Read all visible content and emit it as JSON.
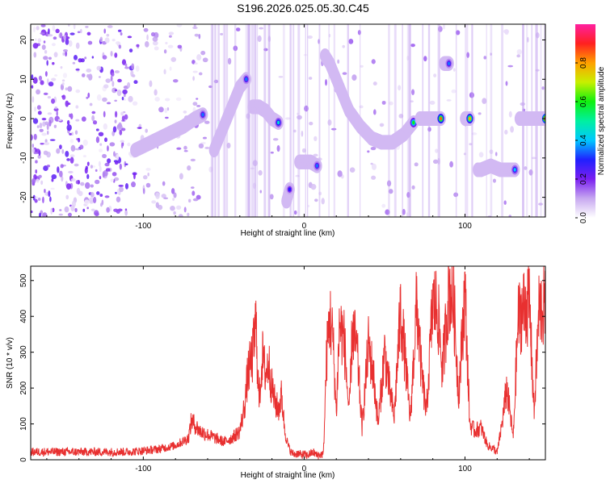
{
  "title": "S196.2026.025.05.30.C45",
  "chart_data": [
    {
      "type": "heatmap",
      "name": "spectrogram",
      "xlabel": "Height of straight line (km)",
      "ylabel": "Frequency (Hz)",
      "xlim": [
        -170,
        150
      ],
      "ylim": [
        -25,
        24
      ],
      "xticks": [
        -100,
        0,
        100
      ],
      "yticks": [
        -20,
        -10,
        0,
        10,
        20
      ],
      "colorbar": {
        "label": "Normalized spectral amplitude",
        "range": [
          0,
          1
        ],
        "ticks": [
          "0.0",
          "0.2",
          "0.4",
          "0.6",
          "0.8"
        ],
        "colors": [
          "#ffffff",
          "#c7a8f0",
          "#7a1ff0",
          "#2020ff",
          "#00c8ff",
          "#00f0a0",
          "#10f010",
          "#c8f000",
          "#ffa000",
          "#ff2020",
          "#ff20a0"
        ]
      },
      "ridge_segments": [
        {
          "x": [
            -105,
            -95,
            -85,
            -75,
            -68,
            -63
          ],
          "y": [
            -8,
            -6,
            -4,
            -2,
            0,
            1
          ],
          "amp": 0.35
        },
        {
          "x": [
            -56,
            -52,
            -48,
            -44,
            -40,
            -36
          ],
          "y": [
            -8,
            -4,
            0,
            4,
            8,
            10
          ],
          "amp": 0.35
        },
        {
          "x": [
            -32,
            -28,
            -24,
            -20,
            -16
          ],
          "y": [
            3,
            3,
            2,
            0,
            -1
          ],
          "amp": 0.45
        },
        {
          "x": [
            -11,
            -9
          ],
          "y": [
            -21,
            -18
          ],
          "amp": 0.3
        },
        {
          "x": [
            -3,
            0,
            4,
            8
          ],
          "y": [
            -11,
            -11,
            -11,
            -12
          ],
          "amp": 0.35
        },
        {
          "x": [
            13,
            16,
            22,
            28,
            35,
            42,
            48,
            55,
            62,
            68
          ],
          "y": [
            16,
            14,
            8,
            2,
            -2,
            -5,
            -6,
            -6,
            -4,
            -1
          ],
          "amp": 0.6
        },
        {
          "x": [
            72,
            75,
            80,
            85
          ],
          "y": [
            0,
            0,
            0,
            0
          ],
          "amp": 0.85
        },
        {
          "x": [
            87,
            90
          ],
          "y": [
            14,
            14
          ],
          "amp": 0.35
        },
        {
          "x": [
            100,
            103
          ],
          "y": [
            0,
            0
          ],
          "amp": 0.8
        },
        {
          "x": [
            108,
            110,
            116,
            122,
            128,
            131
          ],
          "y": [
            -13,
            -13,
            -12,
            -13,
            -13,
            -13
          ],
          "amp": 0.4
        },
        {
          "x": [
            134,
            140,
            146,
            150
          ],
          "y": [
            0,
            0,
            0,
            0
          ],
          "amp": 0.95
        }
      ]
    },
    {
      "type": "line",
      "name": "snr",
      "xlabel": "Height of straight line (km)",
      "ylabel": "SNR (10 * v/v)",
      "xlim": [
        -170,
        150
      ],
      "ylim": [
        0,
        540
      ],
      "xticks": [
        -100,
        0,
        100
      ],
      "yticks": [
        0,
        100,
        200,
        300,
        400,
        500
      ],
      "color": "#e83030",
      "series": [
        {
          "name": "SNR",
          "x": [
            -170,
            -150,
            -130,
            -110,
            -100,
            -90,
            -80,
            -72,
            -70,
            -65,
            -60,
            -55,
            -50,
            -45,
            -40,
            -37,
            -35,
            -32,
            -30,
            -28,
            -26,
            -24,
            -22,
            -20,
            -18,
            -16,
            -14,
            -12,
            -10,
            -8,
            -6,
            -4,
            -2,
            0,
            2,
            4,
            6,
            8,
            10,
            12,
            14,
            16,
            18,
            20,
            22,
            25,
            28,
            30,
            33,
            36,
            40,
            43,
            46,
            50,
            53,
            56,
            60,
            63,
            66,
            70,
            73,
            76,
            80,
            83,
            86,
            90,
            93,
            96,
            100,
            103,
            106,
            110,
            114,
            118,
            120,
            123,
            126,
            130,
            133,
            136,
            140,
            143,
            146,
            150
          ],
          "y": [
            22,
            22,
            22,
            22,
            25,
            30,
            40,
            60,
            110,
            80,
            70,
            60,
            50,
            60,
            80,
            150,
            240,
            290,
            380,
            160,
            290,
            240,
            270,
            200,
            160,
            140,
            180,
            80,
            40,
            20,
            15,
            18,
            14,
            15,
            12,
            18,
            20,
            12,
            14,
            16,
            290,
            400,
            330,
            130,
            380,
            330,
            120,
            370,
            300,
            90,
            320,
            240,
            100,
            300,
            200,
            120,
            420,
            270,
            110,
            440,
            240,
            130,
            440,
            420,
            250,
            480,
            440,
            180,
            470,
            100,
            80,
            90,
            40,
            30,
            20,
            100,
            200,
            60,
            390,
            420,
            440,
            130,
            420,
            430
          ]
        }
      ]
    }
  ]
}
